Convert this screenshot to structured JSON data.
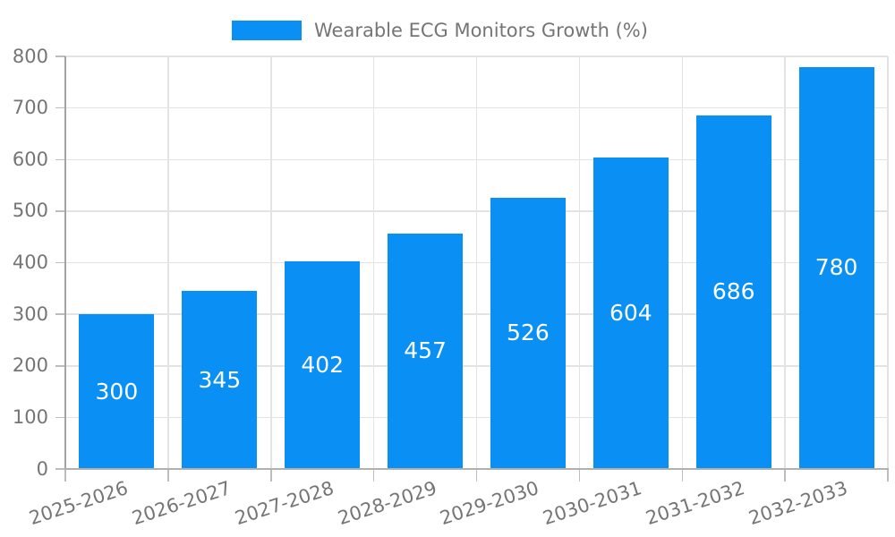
{
  "legend": {
    "label": "Wearable ECG Monitors Growth (%)"
  },
  "chart_data": {
    "type": "bar",
    "title": "",
    "xlabel": "",
    "ylabel": "",
    "categories": [
      "2025-2026",
      "2026-2027",
      "2027-2028",
      "2028-2029",
      "2029-2030",
      "2030-2031",
      "2031-2032",
      "2032-2033"
    ],
    "values": [
      300,
      345,
      402,
      457,
      526,
      604,
      686,
      780
    ],
    "series_label": "Wearable ECG Monitors Growth (%)",
    "value_labels_shown": true,
    "value_label_position": "center",
    "ylim": [
      0,
      800
    ],
    "yticks": [
      0,
      100,
      200,
      300,
      400,
      500,
      600,
      700,
      800
    ],
    "grid": "both",
    "legend_position": "top-center",
    "x_label_rotation_deg": -18,
    "colors": {
      "bar": "#0a90f5",
      "axis_text": "#757575",
      "value_text": "#ffffff",
      "grid": "#e3e3e3",
      "axis_line_y": "#a3a3a3",
      "axis_line_x": "#b0b0b0",
      "tick": "#bdbdbd"
    }
  }
}
